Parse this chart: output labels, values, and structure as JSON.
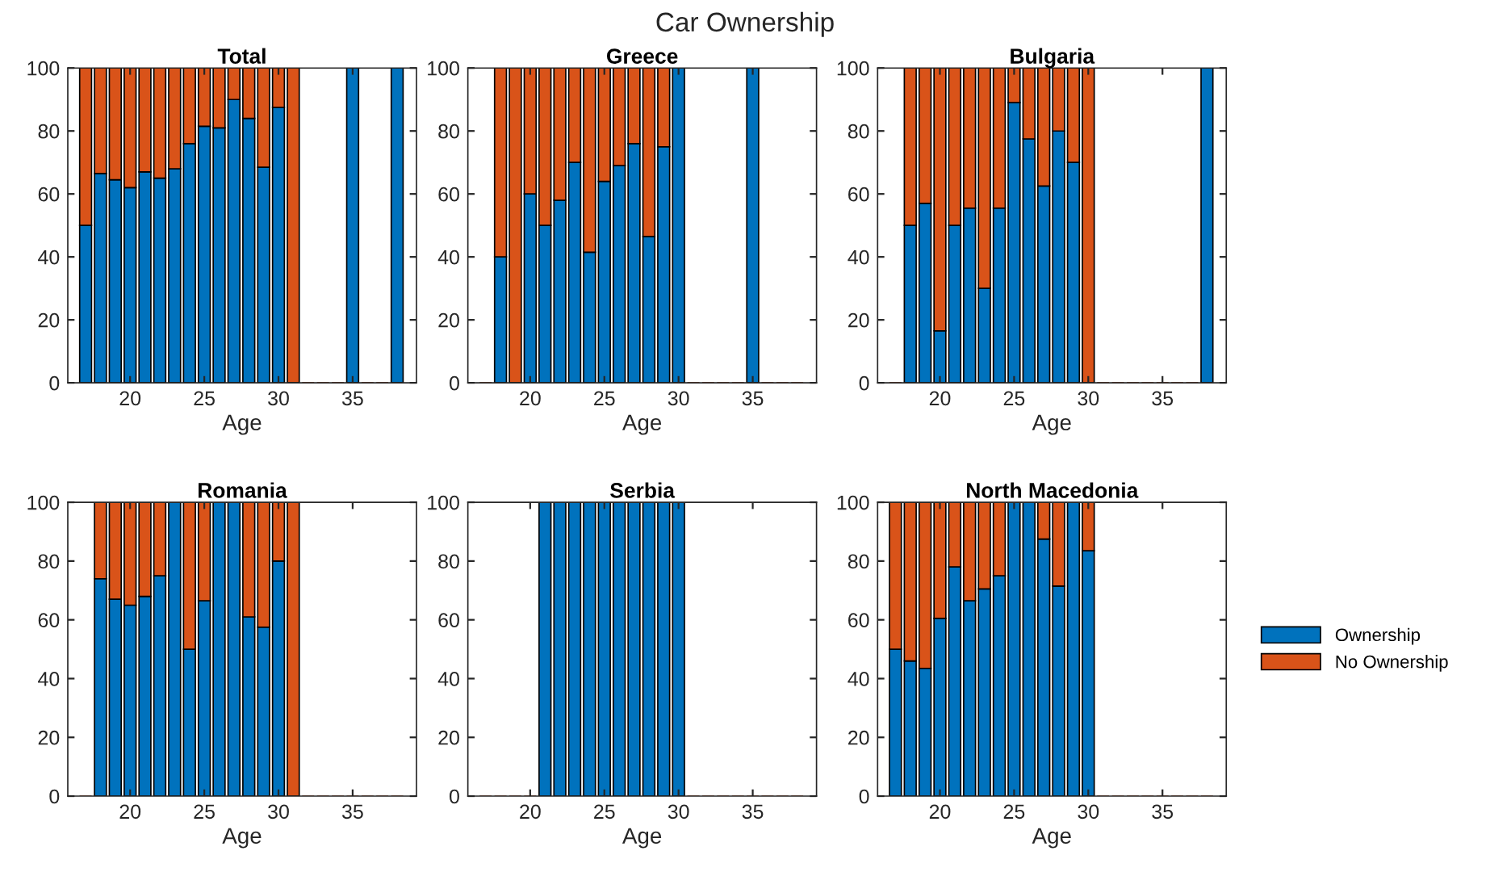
{
  "chart_data": [
    {
      "type": "bar",
      "stacked": true,
      "title": "Total",
      "xlabel": "Age",
      "annotations": [
        "Car Ownership"
      ],
      "x": [
        17,
        18,
        19,
        20,
        21,
        22,
        23,
        24,
        25,
        26,
        27,
        28,
        29,
        30,
        31,
        32,
        33,
        34,
        35,
        36,
        37,
        38
      ],
      "xlim": [
        15.8,
        39.3
      ],
      "xticks": [
        20,
        25,
        30,
        35
      ],
      "ylim": [
        0,
        100
      ],
      "yticks": [
        0,
        20,
        40,
        60,
        80,
        100
      ],
      "grid": false,
      "legend": false,
      "series": [
        {
          "color": "#0072bd",
          "values": [
            50,
            66.5,
            64.5,
            62,
            67,
            65,
            68,
            76,
            81.5,
            81,
            90,
            84,
            68.5,
            87.5,
            0,
            0,
            0,
            0,
            100,
            0,
            0,
            100
          ]
        },
        {
          "color": "#d95319",
          "values": [
            50,
            33.5,
            35.5,
            38,
            33,
            35,
            32,
            24,
            18.5,
            19,
            10,
            16,
            31.5,
            12.5,
            100,
            0,
            0,
            0,
            0,
            0,
            0,
            0
          ]
        }
      ]
    },
    {
      "type": "bar",
      "stacked": true,
      "title": "Greece",
      "xlabel": "Age",
      "x": [
        17,
        18,
        19,
        20,
        21,
        22,
        23,
        24,
        25,
        26,
        27,
        28,
        29,
        30,
        31,
        32,
        33,
        34,
        35,
        36,
        37,
        38
      ],
      "xlim": [
        15.8,
        39.3
      ],
      "xticks": [
        20,
        25,
        30,
        35
      ],
      "ylim": [
        0,
        100
      ],
      "yticks": [
        0,
        20,
        40,
        60,
        80,
        100
      ],
      "grid": false,
      "legend": false,
      "series": [
        {
          "color": "#0072bd",
          "values": [
            0,
            40,
            0,
            60,
            50,
            58,
            70,
            41.5,
            64,
            69,
            76,
            46.5,
            75,
            100,
            0,
            0,
            0,
            0,
            100,
            0,
            0,
            0
          ]
        },
        {
          "color": "#d95319",
          "values": [
            0,
            60,
            100,
            40,
            50,
            42,
            30,
            58.5,
            36,
            31,
            24,
            53.5,
            25,
            0,
            0,
            0,
            0,
            0,
            0,
            0,
            0,
            0
          ]
        }
      ]
    },
    {
      "type": "bar",
      "stacked": true,
      "title": "Bulgaria",
      "xlabel": "Age",
      "x": [
        17,
        18,
        19,
        20,
        21,
        22,
        23,
        24,
        25,
        26,
        27,
        28,
        29,
        30,
        31,
        32,
        33,
        34,
        35,
        36,
        37,
        38
      ],
      "xlim": [
        15.8,
        39.3
      ],
      "xticks": [
        20,
        25,
        30,
        35
      ],
      "ylim": [
        0,
        100
      ],
      "yticks": [
        0,
        20,
        40,
        60,
        80,
        100
      ],
      "grid": false,
      "legend": false,
      "series": [
        {
          "color": "#0072bd",
          "values": [
            0,
            50,
            57,
            16.5,
            50,
            55.5,
            30,
            55.5,
            89,
            77.5,
            62.5,
            80,
            70,
            0,
            0,
            0,
            0,
            0,
            0,
            0,
            0,
            100
          ]
        },
        {
          "color": "#d95319",
          "values": [
            0,
            50,
            43,
            83.5,
            50,
            44.5,
            70,
            44.5,
            11,
            22.5,
            37.5,
            20,
            30,
            100,
            0,
            0,
            0,
            0,
            0,
            0,
            0,
            0
          ]
        }
      ]
    },
    {
      "type": "bar",
      "stacked": true,
      "title": "Romania",
      "xlabel": "Age",
      "x": [
        17,
        18,
        19,
        20,
        21,
        22,
        23,
        24,
        25,
        26,
        27,
        28,
        29,
        30,
        31,
        32,
        33,
        34,
        35,
        36,
        37,
        38
      ],
      "xlim": [
        15.8,
        39.3
      ],
      "xticks": [
        20,
        25,
        30,
        35
      ],
      "ylim": [
        0,
        100
      ],
      "yticks": [
        0,
        20,
        40,
        60,
        80,
        100
      ],
      "grid": false,
      "legend": false,
      "series": [
        {
          "color": "#0072bd",
          "values": [
            0,
            74,
            67,
            65,
            68,
            75,
            100,
            50,
            66.5,
            100,
            100,
            61,
            57.5,
            80,
            0,
            0,
            0,
            0,
            0,
            0,
            0,
            0
          ]
        },
        {
          "color": "#d95319",
          "values": [
            0,
            26,
            33,
            35,
            32,
            25,
            0,
            50,
            33.5,
            0,
            0,
            39,
            42.5,
            20,
            100,
            0,
            0,
            0,
            0,
            0,
            0,
            0
          ]
        }
      ]
    },
    {
      "type": "bar",
      "stacked": true,
      "title": "Serbia",
      "xlabel": "Age",
      "x": [
        17,
        18,
        19,
        20,
        21,
        22,
        23,
        24,
        25,
        26,
        27,
        28,
        29,
        30,
        31,
        32,
        33,
        34,
        35,
        36,
        37,
        38
      ],
      "xlim": [
        15.8,
        39.3
      ],
      "xticks": [
        20,
        25,
        30,
        35
      ],
      "ylim": [
        0,
        100
      ],
      "yticks": [
        0,
        20,
        40,
        60,
        80,
        100
      ],
      "grid": false,
      "legend": false,
      "series": [
        {
          "color": "#0072bd",
          "values": [
            0,
            0,
            0,
            0,
            100,
            100,
            100,
            100,
            100,
            100,
            100,
            100,
            100,
            100,
            0,
            0,
            0,
            0,
            0,
            0,
            0,
            0
          ]
        },
        {
          "color": "#d95319",
          "values": [
            0,
            0,
            0,
            0,
            0,
            0,
            0,
            0,
            0,
            0,
            0,
            0,
            0,
            0,
            0,
            0,
            0,
            0,
            0,
            0,
            0,
            0
          ]
        }
      ]
    },
    {
      "type": "bar",
      "stacked": true,
      "title": "North Macedonia",
      "xlabel": "Age",
      "x": [
        17,
        18,
        19,
        20,
        21,
        22,
        23,
        24,
        25,
        26,
        27,
        28,
        29,
        30,
        31,
        32,
        33,
        34,
        35,
        36,
        37,
        38
      ],
      "xlim": [
        15.8,
        39.3
      ],
      "xticks": [
        20,
        25,
        30,
        35
      ],
      "ylim": [
        0,
        100
      ],
      "yticks": [
        0,
        20,
        40,
        60,
        80,
        100
      ],
      "grid": false,
      "legend": "right",
      "series": [
        {
          "name": "Ownership",
          "color": "#0072bd",
          "values": [
            50,
            46,
            43.5,
            60.5,
            78,
            66.5,
            70.5,
            75,
            100,
            100,
            87.5,
            71.5,
            100,
            83.5,
            0,
            0,
            0,
            0,
            0,
            0,
            0,
            0
          ]
        },
        {
          "name": "No Ownership",
          "color": "#d95319",
          "values": [
            50,
            54,
            56.5,
            39.5,
            22,
            33.5,
            29.5,
            25,
            0,
            0,
            12.5,
            28.5,
            0,
            16.5,
            0,
            0,
            0,
            0,
            0,
            0,
            0,
            0
          ]
        }
      ]
    }
  ]
}
